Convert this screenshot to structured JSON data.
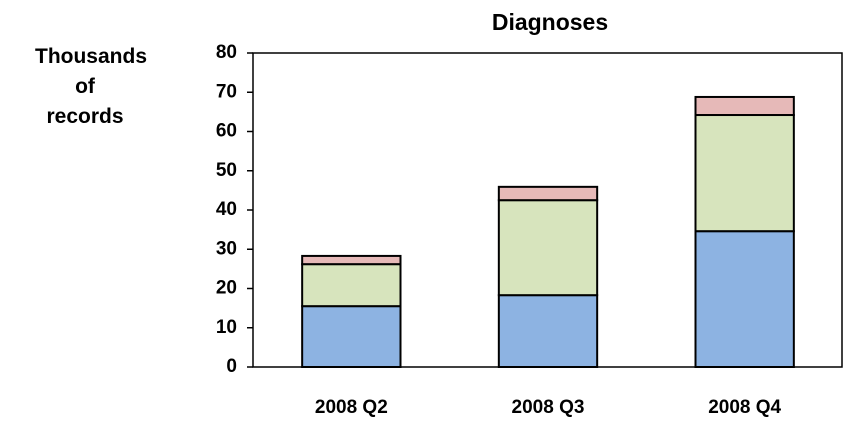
{
  "chart_data": {
    "type": "stacked_bar",
    "title": "Diagnoses",
    "y_label": "Thousands of records",
    "categories": [
      "2008 Q2",
      "2008 Q3",
      "2008 Q4"
    ],
    "series": [
      {
        "color": "#8db3e2",
        "values": [
          15.5,
          18.3,
          34.6
        ]
      },
      {
        "color": "#d7e4bd",
        "values": [
          10.7,
          24.2,
          29.6
        ]
      },
      {
        "color": "#e6b9b8",
        "values": [
          2.1,
          3.4,
          4.6
        ]
      }
    ],
    "ylim": [
      0,
      80
    ],
    "yticks": [
      0,
      10,
      20,
      30,
      40,
      50,
      60,
      70,
      80
    ],
    "grid": false
  }
}
